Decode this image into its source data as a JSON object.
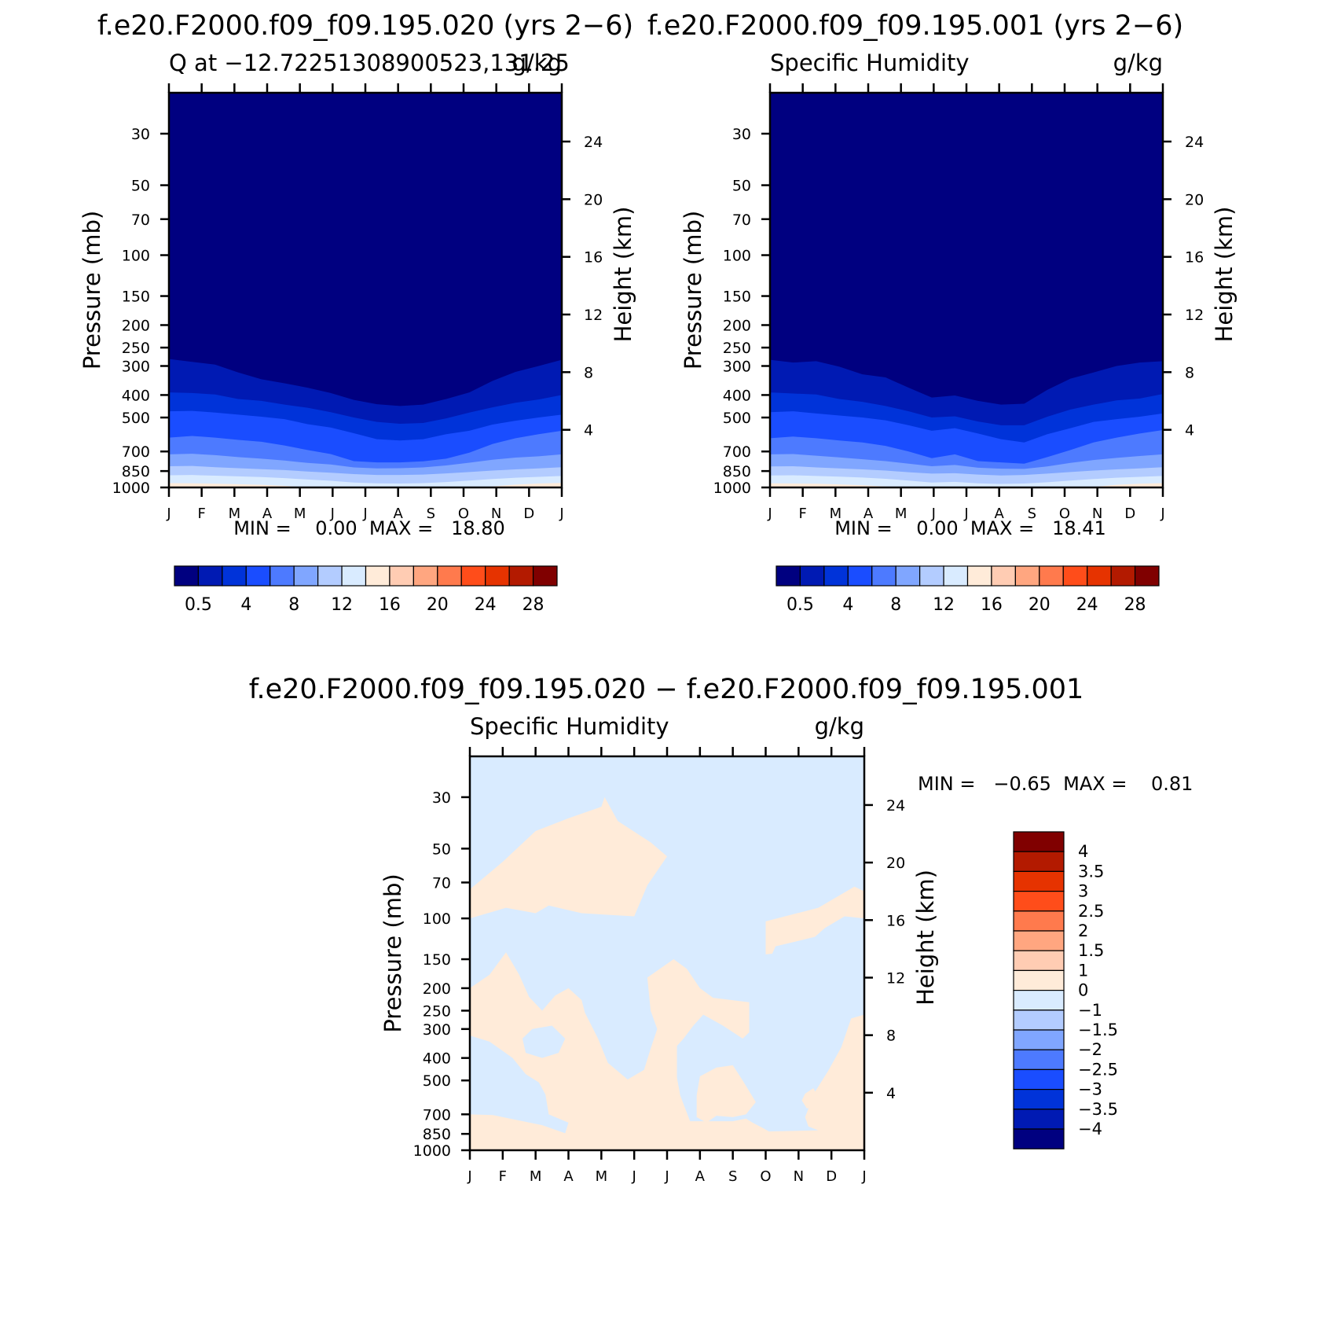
{
  "colors": {
    "q_levels": [
      "#000080",
      "#001ab3",
      "#0033d9",
      "#1a4dff",
      "#4d7aff",
      "#80a6ff",
      "#b3ccff",
      "#d9ebff",
      "#ffebd9",
      "#ffccb3",
      "#ffa680",
      "#ff7a4d",
      "#ff4d1a",
      "#e63300",
      "#b31a00",
      "#800000"
    ],
    "diff_levels": [
      "#000080",
      "#001ab3",
      "#0033d9",
      "#1a4dff",
      "#4d7aff",
      "#80a6ff",
      "#b3ccff",
      "#d9ebff",
      "#ffebd9",
      "#ffccb3",
      "#ffa680",
      "#ff7a4d",
      "#ff4d1a",
      "#e63300",
      "#b31a00",
      "#800000"
    ]
  },
  "panels": [
    {
      "main_title": "f.e20.F2000.f09_f09.195.020 (yrs 2−6)",
      "left_title": "Q at −12.72251308900523,131.25",
      "right_title": "g/kg",
      "minmax": "MIN =    0.00  MAX =   18.80",
      "ylabel": "Pressure (mb)",
      "ylabel_right": "Height (km)"
    },
    {
      "main_title": "f.e20.F2000.f09_f09.195.001 (yrs 2−6)",
      "left_title": "Specific Humidity",
      "right_title": "g/kg",
      "minmax": "MIN =    0.00  MAX =   18.41",
      "ylabel": "Pressure (mb)",
      "ylabel_right": "Height (km)"
    },
    {
      "main_title": "f.e20.F2000.f09_f09.195.020 − f.e20.F2000.f09_f09.195.001",
      "left_title": "Specific Humidity",
      "right_title": "g/kg",
      "minmax": "MIN =   −0.65  MAX =    0.81",
      "ylabel": "Pressure (mb)",
      "ylabel_right": "Height (km)"
    }
  ],
  "chart_data": [
    {
      "type": "heatmap",
      "subtype": "filled-contour",
      "title": "f.e20.F2000.f09_f09.195.020 (yrs 2−6)",
      "xlabel": "",
      "ylabel": "Pressure (mb)",
      "ylabel_right": "Height (km)",
      "x_ticks": [
        "J",
        "F",
        "M",
        "A",
        "M",
        "J",
        "J",
        "A",
        "S",
        "O",
        "N",
        "D",
        "J"
      ],
      "y_ticks": [
        30,
        50,
        70,
        100,
        150,
        200,
        250,
        300,
        400,
        500,
        700,
        850,
        1000
      ],
      "ylim": [
        1000,
        20
      ],
      "y2_ticks": [
        24,
        20,
        16,
        12,
        8,
        4
      ],
      "colorbar_labels": [
        "0.5",
        "4",
        "8",
        "12",
        "16",
        "20",
        "24",
        "28"
      ],
      "contour_boundaries_mb": [
        [
          280,
          288,
          296,
          320,
          342,
          356,
          372,
          392,
          420,
          438,
          446,
          440,
          416,
          390,
          348,
          318,
          300,
          282
        ],
        [
          390,
          392,
          398,
          416,
          424,
          440,
          454,
          474,
          500,
          522,
          532,
          528,
          504,
          476,
          452,
          432,
          418,
          400
        ],
        [
          470,
          468,
          476,
          486,
          496,
          508,
          534,
          552,
          584,
          620,
          628,
          620,
          590,
          570,
          536,
          516,
          500,
          486
        ],
        [
          610,
          600,
          610,
          624,
          636,
          660,
          690,
          718,
          770,
          780,
          780,
          772,
          752,
          708,
          650,
          614,
          590,
          570
        ],
        [
          720,
          716,
          726,
          740,
          752,
          766,
          784,
          796,
          820,
          828,
          826,
          820,
          804,
          782,
          760,
          744,
          734,
          720
        ],
        [
          810,
          808,
          818,
          826,
          834,
          842,
          854,
          864,
          876,
          884,
          884,
          880,
          870,
          858,
          846,
          836,
          828,
          818
        ],
        [
          886,
          884,
          890,
          896,
          902,
          912,
          924,
          936,
          952,
          960,
          962,
          958,
          948,
          934,
          920,
          908,
          900,
          892
        ],
        [
          958,
          960,
          964,
          968,
          974,
          984,
          1000,
          1000,
          1000,
          1000,
          1000,
          1000,
          1000,
          1000,
          990,
          972,
          962,
          956
        ],
        [
          1000,
          1000,
          1000,
          1000,
          1000,
          1000,
          1000,
          1000,
          1000,
          1000,
          1000,
          1000,
          1000,
          1000,
          1000,
          1000,
          1000,
          1000
        ]
      ]
    },
    {
      "type": "heatmap",
      "subtype": "filled-contour",
      "title": "f.e20.F2000.f09_f09.195.001 (yrs 2−6)",
      "xlabel": "",
      "ylabel": "Pressure (mb)",
      "ylabel_right": "Height (km)",
      "x_ticks": [
        "J",
        "F",
        "M",
        "A",
        "M",
        "J",
        "J",
        "A",
        "S",
        "O",
        "N",
        "D",
        "J"
      ],
      "y_ticks": [
        30,
        50,
        70,
        100,
        150,
        200,
        250,
        300,
        400,
        500,
        700,
        850,
        1000
      ],
      "ylim": [
        1000,
        20
      ],
      "y2_ticks": [
        24,
        20,
        16,
        12,
        8,
        4
      ],
      "colorbar_labels": [
        "0.5",
        "4",
        "8",
        "12",
        "16",
        "20",
        "24",
        "28"
      ],
      "contour_boundaries_mb": [
        [
          282,
          290,
          286,
          302,
          326,
          336,
          372,
          410,
          402,
          424,
          440,
          436,
          380,
          340,
          320,
          300,
          290,
          286
        ],
        [
          390,
          394,
          398,
          416,
          428,
          446,
          470,
          500,
          494,
          520,
          540,
          540,
          496,
          462,
          440,
          422,
          414,
          396
        ],
        [
          474,
          470,
          480,
          490,
          500,
          514,
          540,
          570,
          556,
          586,
          620,
          640,
          590,
          556,
          522,
          508,
          496,
          480
        ],
        [
          614,
          604,
          614,
          628,
          640,
          662,
          700,
          748,
          720,
          770,
          780,
          790,
          740,
          690,
          640,
          610,
          586,
          566
        ],
        [
          720,
          718,
          730,
          742,
          756,
          770,
          790,
          810,
          800,
          822,
          830,
          832,
          812,
          784,
          762,
          746,
          732,
          720
        ],
        [
          812,
          810,
          820,
          828,
          836,
          846,
          860,
          872,
          868,
          880,
          888,
          884,
          872,
          858,
          846,
          836,
          828,
          818
        ],
        [
          888,
          886,
          892,
          898,
          906,
          918,
          934,
          952,
          946,
          960,
          966,
          962,
          950,
          934,
          920,
          908,
          900,
          892
        ],
        [
          960,
          962,
          964,
          970,
          978,
          990,
          1000,
          1000,
          1000,
          1000,
          1000,
          1000,
          1000,
          1000,
          994,
          974,
          964,
          958
        ],
        [
          1000,
          1000,
          1000,
          1000,
          1000,
          1000,
          1000,
          1000,
          1000,
          1000,
          1000,
          1000,
          1000,
          1000,
          1000,
          1000,
          1000,
          1000
        ]
      ]
    },
    {
      "type": "heatmap",
      "subtype": "filled-contour",
      "title": "f.e20.F2000.f09_f09.195.020 − f.e20.F2000.f09_f09.195.001",
      "xlabel": "",
      "ylabel": "Pressure (mb)",
      "ylabel_right": "Height (km)",
      "x_ticks": [
        "J",
        "F",
        "M",
        "A",
        "M",
        "J",
        "J",
        "A",
        "S",
        "O",
        "N",
        "D",
        "J"
      ],
      "y_ticks": [
        30,
        50,
        70,
        100,
        150,
        200,
        250,
        300,
        400,
        500,
        700,
        850,
        1000
      ],
      "ylim": [
        1000,
        20
      ],
      "y2_ticks": [
        24,
        20,
        16,
        12,
        8,
        4
      ],
      "colorbar_labels": [
        "4",
        "3.5",
        "3",
        "2.5",
        "2",
        "1.5",
        "1",
        "0",
        "−1",
        "−1.5",
        "−2",
        "−2.5",
        "−3",
        "−3.5",
        "−4"
      ],
      "background_level": "0 to −1",
      "positive_regions": [
        {
          "label": "upper-left lobe",
          "points": [
            [
              0,
              75
            ],
            [
              1,
              57
            ],
            [
              2,
              42
            ],
            [
              3,
              37
            ],
            [
              4,
              33
            ],
            [
              4.1,
              30
            ],
            [
              4.5,
              38
            ],
            [
              5.5,
              47
            ],
            [
              6.0,
              54
            ],
            [
              5.4,
              72
            ],
            [
              5.0,
              98
            ],
            [
              3.4,
              95
            ],
            [
              2.4,
              88
            ],
            [
              2.0,
              95
            ],
            [
              1.1,
              90
            ],
            [
              0,
              100
            ]
          ]
        },
        {
          "label": "upper-right lobe",
          "points": [
            [
              9.0,
              103
            ],
            [
              10.6,
              90
            ],
            [
              11.7,
              73
            ],
            [
              12.3,
              80
            ],
            [
              12.8,
              82
            ],
            [
              12.0,
              100
            ],
            [
              11.4,
              98
            ],
            [
              10.8,
              110
            ],
            [
              10.5,
              120
            ],
            [
              10.1,
              124
            ],
            [
              9.3,
              132
            ],
            [
              9.2,
              142
            ],
            [
              9.0,
              143
            ]
          ]
        },
        {
          "label": "lower-left region",
          "points": [
            [
              0,
              200
            ],
            [
              0.6,
              175
            ],
            [
              1.1,
              140
            ],
            [
              1.5,
              175
            ],
            [
              1.8,
              218
            ],
            [
              2.2,
              250
            ],
            [
              2.6,
              215
            ],
            [
              3.0,
              200
            ],
            [
              3.4,
              225
            ],
            [
              3.5,
              255
            ],
            [
              3.9,
              330
            ],
            [
              4.2,
              420
            ],
            [
              4.8,
              495
            ],
            [
              5.3,
              450
            ],
            [
              5.5,
              365
            ],
            [
              5.7,
              300
            ],
            [
              5.5,
              250
            ],
            [
              5.4,
              180
            ],
            [
              6.2,
              150
            ],
            [
              6.6,
              165
            ],
            [
              7.0,
              200
            ],
            [
              7.4,
              220
            ],
            [
              8.5,
              230
            ],
            [
              8.5,
              310
            ],
            [
              8.3,
              330
            ],
            [
              7.7,
              290
            ],
            [
              7.1,
              260
            ],
            [
              6.8,
              290
            ],
            [
              6.5,
              330
            ],
            [
              6.3,
              355
            ],
            [
              6.3,
              485
            ],
            [
              6.4,
              580
            ],
            [
              6.7,
              750
            ],
            [
              8.0,
              750
            ],
            [
              8.4,
              730
            ],
            [
              8.6,
              760
            ],
            [
              8.9,
              800
            ],
            [
              9.1,
              830
            ],
            [
              10.6,
              820
            ],
            [
              10.3,
              790
            ],
            [
              10.2,
              720
            ],
            [
              10.5,
              560
            ],
            [
              10.9,
              455
            ],
            [
              11.3,
              360
            ],
            [
              11.6,
              270
            ],
            [
              12.0,
              260
            ],
            [
              12.4,
              250
            ],
            [
              12.8,
              255
            ],
            [
              13,
              260
            ],
            [
              13,
              720
            ],
            [
              12.6,
              700
            ],
            [
              12.4,
              760
            ],
            [
              12.2,
              820
            ],
            [
              12.6,
              870
            ],
            [
              13,
              920
            ],
            [
              13,
              1000
            ],
            [
              0,
              1000
            ],
            [
              0,
              700
            ],
            [
              0.7,
              705
            ],
            [
              2.2,
              780
            ],
            [
              2.9,
              845
            ],
            [
              3.0,
              760
            ],
            [
              2.4,
              700
            ],
            [
              2.3,
              575
            ],
            [
              2.1,
              510
            ],
            [
              1.7,
              470
            ],
            [
              1.3,
              400
            ],
            [
              0.6,
              340
            ],
            [
              0,
              320
            ]
          ]
        },
        {
          "label": "lower-middle blob",
          "points": [
            [
              7.0,
              480
            ],
            [
              7.5,
              440
            ],
            [
              8.0,
              430
            ],
            [
              8.3,
              500
            ],
            [
              8.7,
              620
            ],
            [
              8.4,
              700
            ],
            [
              8.0,
              720
            ],
            [
              7.5,
              710
            ],
            [
              7.2,
              760
            ],
            [
              6.9,
              720
            ],
            [
              6.9,
              580
            ]
          ]
        },
        {
          "label": "right small blob",
          "points": [
            [
              10.2,
              570
            ],
            [
              10.45,
              540
            ],
            [
              10.6,
              590
            ],
            [
              10.55,
              650
            ],
            [
              10.25,
              660
            ],
            [
              10.1,
              610
            ]
          ]
        }
      ],
      "negative_islands": [
        {
          "label": "hole",
          "points": [
            [
              1.6,
              330
            ],
            [
              1.9,
              300
            ],
            [
              2.5,
              290
            ],
            [
              2.9,
              330
            ],
            [
              2.7,
              380
            ],
            [
              2.2,
              400
            ],
            [
              1.7,
              380
            ]
          ]
        }
      ]
    }
  ]
}
